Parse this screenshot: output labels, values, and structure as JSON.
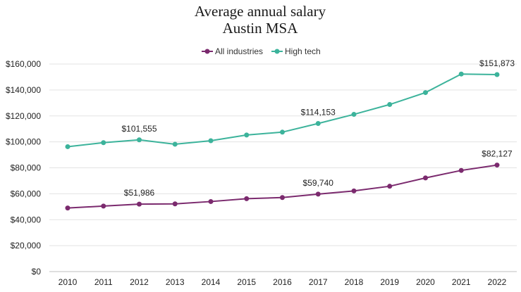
{
  "chart_data": {
    "type": "line",
    "title": "Average annual salary",
    "subtitle": "Austin MSA",
    "xlabel": "",
    "ylabel": "",
    "categories": [
      "2010",
      "2011",
      "2012",
      "2013",
      "2014",
      "2015",
      "2016",
      "2017",
      "2018",
      "2019",
      "2020",
      "2021",
      "2022"
    ],
    "ylim": [
      0,
      160000
    ],
    "yticks": [
      0,
      20000,
      40000,
      60000,
      80000,
      100000,
      120000,
      140000,
      160000
    ],
    "ytick_labels": [
      "$0",
      "$20,000",
      "$40,000",
      "$60,000",
      "$80,000",
      "$100,000",
      "$120,000",
      "$140,000",
      "$160,000"
    ],
    "grid": true,
    "legend_position": "top",
    "series": [
      {
        "name": "All industries",
        "color": "#7b2a6e",
        "values": [
          49000,
          50500,
          51986,
          52200,
          54000,
          56200,
          57100,
          59740,
          62200,
          65800,
          72200,
          78000,
          82127
        ],
        "data_labels": [
          {
            "index": 2,
            "text": "$51,986"
          },
          {
            "index": 7,
            "text": "$59,740"
          },
          {
            "index": 12,
            "text": "$82,127"
          }
        ]
      },
      {
        "name": "High tech",
        "color": "#3cb39b",
        "values": [
          96300,
          99400,
          101555,
          98200,
          100900,
          105300,
          107500,
          114153,
          121200,
          128800,
          138000,
          152300,
          151873
        ],
        "data_labels": [
          {
            "index": 2,
            "text": "$101,555"
          },
          {
            "index": 7,
            "text": "$114,153"
          },
          {
            "index": 12,
            "text": "$151,873"
          }
        ]
      }
    ]
  }
}
